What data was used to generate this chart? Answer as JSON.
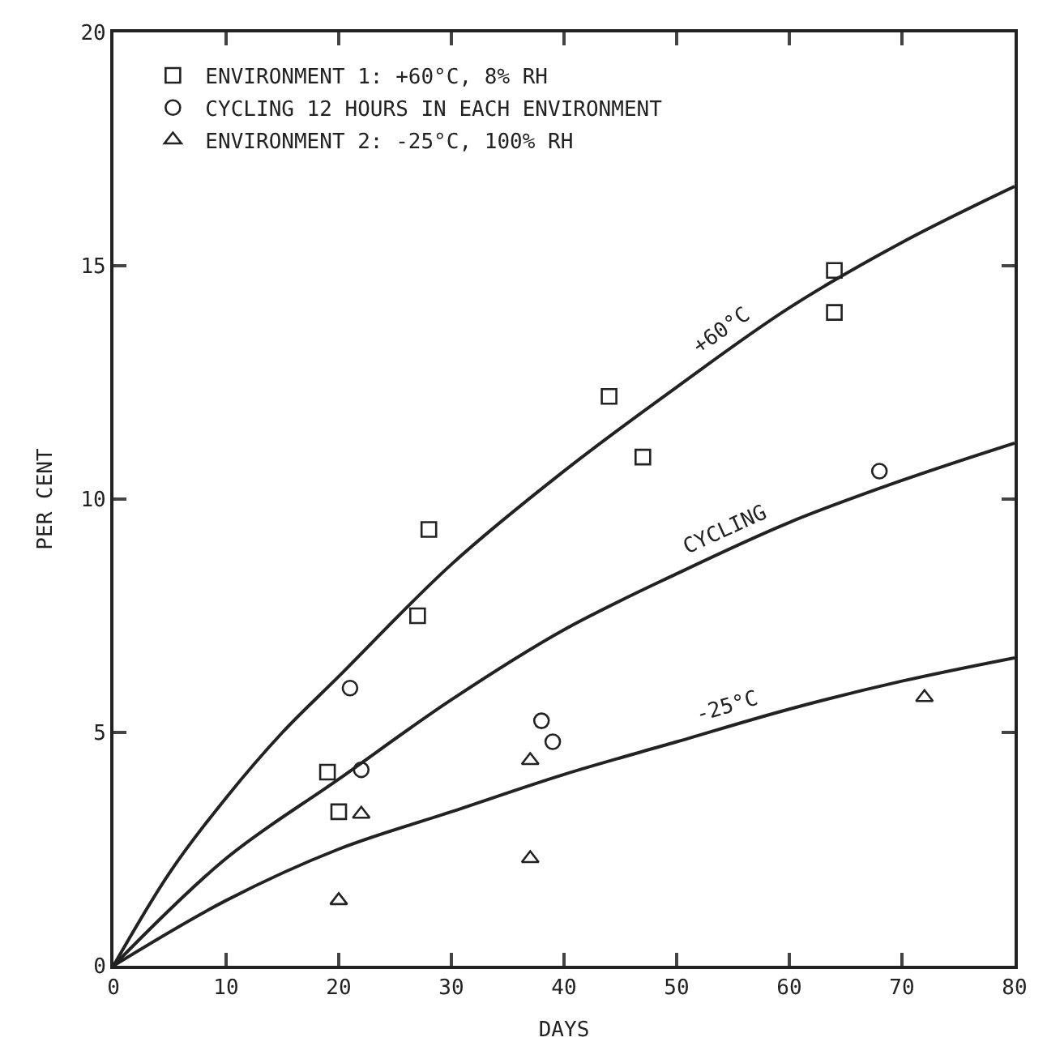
{
  "chart_data": {
    "type": "scatter",
    "xlabel": "DAYS",
    "ylabel": "PER CENT",
    "xlim": [
      0,
      80
    ],
    "ylim": [
      0,
      20
    ],
    "xticks": [
      0,
      10,
      20,
      30,
      40,
      50,
      60,
      70,
      80
    ],
    "yticks": [
      0,
      5,
      10,
      15,
      20
    ],
    "grid": false,
    "legend": "top left",
    "series": [
      {
        "name": "ENVIRONMENT 1: +60°C, 8% RH",
        "color": "#222222",
        "marker": "square",
        "x": [
          19,
          20,
          27,
          28,
          44,
          47,
          64,
          64
        ],
        "values": [
          4.15,
          3.3,
          7.5,
          9.35,
          12.2,
          10.9,
          14.9,
          14.0
        ]
      },
      {
        "name": "CYCLING 12 HOURS IN EACH ENVIRONMENT",
        "color": "#222222",
        "marker": "circle",
        "x": [
          21,
          22,
          38,
          39,
          68
        ],
        "values": [
          5.95,
          4.2,
          5.25,
          4.8,
          10.6
        ]
      },
      {
        "name": "ENVIRONMENT 2: -25°C, 100% RH",
        "color": "#222222",
        "marker": "triangle",
        "x": [
          20,
          22,
          37,
          37,
          72
        ],
        "values": [
          1.4,
          3.25,
          4.4,
          2.3,
          5.75
        ]
      },
      {
        "type": "line",
        "name": "+60°C",
        "color": "#222222",
        "x": [
          0,
          5,
          10,
          15,
          20,
          30,
          40,
          50,
          60,
          70,
          80
        ],
        "values": [
          0,
          2.0,
          3.6,
          5.0,
          6.2,
          8.6,
          10.6,
          12.4,
          14.1,
          15.5,
          16.7
        ]
      },
      {
        "type": "line",
        "name": "CYCLING",
        "color": "#222222",
        "x": [
          0,
          10,
          20,
          30,
          40,
          50,
          60,
          70,
          80
        ],
        "values": [
          0,
          2.3,
          4.0,
          5.7,
          7.2,
          8.4,
          9.5,
          10.4,
          11.2
        ]
      },
      {
        "type": "line",
        "name": "-25°C",
        "color": "#222222",
        "x": [
          0,
          10,
          20,
          30,
          40,
          50,
          60,
          70,
          80
        ],
        "values": [
          0,
          1.4,
          2.5,
          3.3,
          4.1,
          4.8,
          5.5,
          6.1,
          6.6
        ]
      }
    ]
  }
}
